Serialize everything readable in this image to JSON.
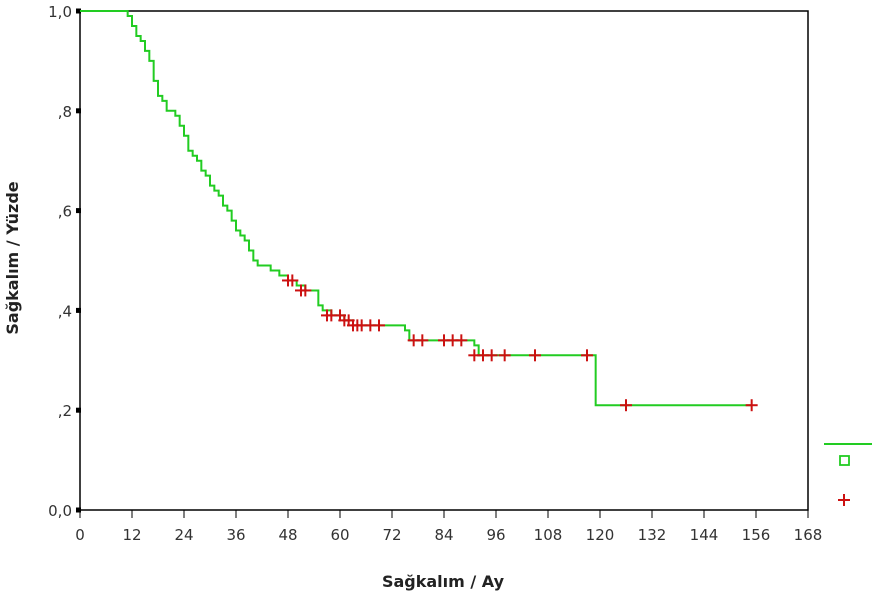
{
  "chart_data": {
    "type": "line",
    "title": "",
    "xlabel": "Sağkalım / Ay",
    "ylabel": "Sağkalım / Yüzde",
    "xlim": [
      0,
      168
    ],
    "ylim": [
      0,
      1
    ],
    "x_ticks": [
      0,
      12,
      24,
      36,
      48,
      60,
      72,
      84,
      96,
      108,
      120,
      132,
      144,
      156,
      168
    ],
    "x_tick_labels": [
      "0",
      "12",
      "24",
      "36",
      "48",
      "60",
      "72",
      "84",
      "96",
      "108",
      "120",
      "132",
      "144",
      "156",
      "168"
    ],
    "y_ticks": [
      0,
      0.2,
      0.4,
      0.6,
      0.8,
      1.0
    ],
    "y_tick_labels": [
      "0,0",
      ",2",
      ",4",
      ",6",
      ",8",
      "1,0"
    ],
    "grid": false,
    "legend_position": "right",
    "series": [
      {
        "kind": "survival-step",
        "color": "#22cc22",
        "points": [
          [
            0,
            1.0
          ],
          [
            6,
            1.0
          ],
          [
            11,
            0.99
          ],
          [
            12,
            0.97
          ],
          [
            13,
            0.95
          ],
          [
            14,
            0.94
          ],
          [
            15,
            0.92
          ],
          [
            16,
            0.9
          ],
          [
            17,
            0.86
          ],
          [
            18,
            0.83
          ],
          [
            19,
            0.82
          ],
          [
            20,
            0.8
          ],
          [
            22,
            0.79
          ],
          [
            23,
            0.77
          ],
          [
            24,
            0.75
          ],
          [
            25,
            0.72
          ],
          [
            26,
            0.71
          ],
          [
            27,
            0.7
          ],
          [
            28,
            0.68
          ],
          [
            29,
            0.67
          ],
          [
            30,
            0.65
          ],
          [
            31,
            0.64
          ],
          [
            32,
            0.63
          ],
          [
            33,
            0.61
          ],
          [
            34,
            0.6
          ],
          [
            35,
            0.58
          ],
          [
            36,
            0.56
          ],
          [
            37,
            0.55
          ],
          [
            38,
            0.54
          ],
          [
            39,
            0.52
          ],
          [
            40,
            0.5
          ],
          [
            41,
            0.49
          ],
          [
            44,
            0.48
          ],
          [
            46,
            0.47
          ],
          [
            48,
            0.46
          ],
          [
            50,
            0.45
          ],
          [
            52,
            0.44
          ],
          [
            55,
            0.41
          ],
          [
            56,
            0.4
          ],
          [
            58,
            0.39
          ],
          [
            61,
            0.38
          ],
          [
            63,
            0.37
          ],
          [
            75,
            0.36
          ],
          [
            76,
            0.34
          ],
          [
            91,
            0.33
          ],
          [
            92,
            0.31
          ],
          [
            118,
            0.31
          ],
          [
            119,
            0.21
          ],
          [
            155,
            0.21
          ]
        ]
      },
      {
        "kind": "censored-markers",
        "color": "#cc1111",
        "marker": "+",
        "x": [
          48,
          49,
          51,
          52,
          57,
          58,
          60,
          61,
          62,
          63,
          64,
          65,
          67,
          69,
          77,
          79,
          84,
          86,
          88,
          91,
          93,
          95,
          98,
          105,
          117,
          126,
          155
        ],
        "y": [
          0.46,
          0.46,
          0.44,
          0.44,
          0.39,
          0.39,
          0.39,
          0.38,
          0.38,
          0.37,
          0.37,
          0.37,
          0.37,
          0.37,
          0.34,
          0.34,
          0.34,
          0.34,
          0.34,
          0.31,
          0.31,
          0.31,
          0.31,
          0.31,
          0.31,
          0.21,
          0.21
        ]
      }
    ],
    "legend": [
      {
        "icon": "line",
        "color": "#22cc22"
      },
      {
        "icon": "square",
        "color": "#22cc22"
      },
      {
        "icon": "plus",
        "color": "#cc1111"
      }
    ]
  }
}
